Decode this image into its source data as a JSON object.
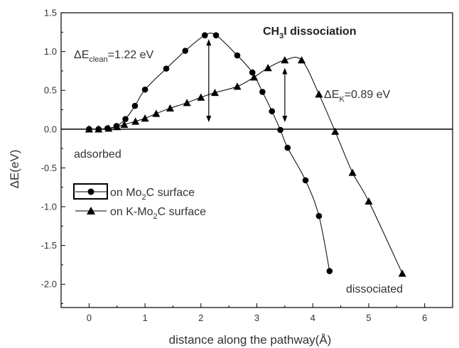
{
  "chart_data": {
    "type": "line",
    "title": "CH3I dissociation",
    "xlabel": "distance along the pathway(Å)",
    "ylabel": "ΔE(eV)",
    "xlim": [
      -0.5,
      6.5
    ],
    "ylim": [
      -2.3,
      1.5
    ],
    "xticks": [
      "0",
      "1",
      "2",
      "3",
      "4",
      "5",
      "6"
    ],
    "yticks": [
      "1.5",
      "1.0",
      "0.5",
      "0.0",
      "-0.5",
      "-1.0",
      "-1.5",
      "-2.0"
    ],
    "grid": false,
    "legend_position": "center-left",
    "series": [
      {
        "name": "on Mo2C surface",
        "marker": "circle",
        "color": "#000000",
        "x": [
          0,
          0.17,
          0.33,
          0.49,
          0.65,
          0.82,
          1.0,
          1.38,
          1.72,
          2.07,
          2.27,
          2.65,
          2.92,
          3.1,
          3.27,
          3.42,
          3.55,
          3.87,
          4.11,
          4.3
        ],
        "y": [
          0,
          0,
          0.01,
          0.04,
          0.13,
          0.3,
          0.51,
          0.78,
          1.01,
          1.21,
          1.21,
          0.95,
          0.73,
          0.48,
          0.23,
          -0.01,
          -0.24,
          -0.66,
          -1.12,
          -1.83
        ]
      },
      {
        "name": "on K-Mo2C surface",
        "marker": "triangle",
        "color": "#000000",
        "x": [
          0,
          0.17,
          0.35,
          0.5,
          0.63,
          0.83,
          1.0,
          1.2,
          1.45,
          1.75,
          2.0,
          2.25,
          2.65,
          2.95,
          3.2,
          3.5,
          3.8,
          4.11,
          4.4,
          4.71,
          5.0,
          5.6
        ],
        "y": [
          0,
          0,
          0.01,
          0.03,
          0.06,
          0.1,
          0.14,
          0.2,
          0.27,
          0.34,
          0.41,
          0.47,
          0.55,
          0.67,
          0.79,
          0.89,
          0.89,
          0.45,
          -0.03,
          -0.56,
          -0.93,
          -1.86
        ]
      }
    ],
    "annotations": [
      {
        "id": "clean",
        "base": "ΔE",
        "sub": "clean",
        "rest": "=1.22 eV"
      },
      {
        "id": "k",
        "base": "ΔE",
        "sub": "K",
        "rest": "=0.89 eV"
      },
      {
        "id": "adsorbed",
        "text": "adsorbed"
      },
      {
        "id": "dissociated",
        "text": "dissociated"
      }
    ],
    "title_parts": {
      "pre": "CH",
      "sub": "3",
      "post": "I dissociation"
    },
    "legend_parts": [
      {
        "pre": "on Mo",
        "sub": "2",
        "post": "C surface"
      },
      {
        "pre": "on K-Mo",
        "sub": "2",
        "post": "C surface"
      }
    ]
  }
}
